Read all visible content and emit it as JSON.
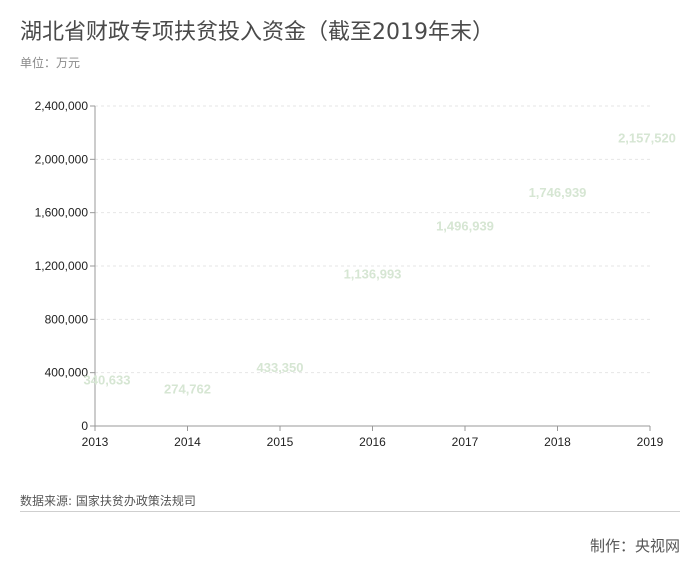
{
  "header": {
    "title": "湖北省财政专项扶贫投入资金（截至2019年末）",
    "unit": "单位：万元"
  },
  "footer": {
    "source": "数据来源: 国家扶贫办政策法规司",
    "credit": "制作：央视网"
  },
  "colors": {
    "data_label": "#d6e6d3",
    "axis": "#999999",
    "grid": "#e6e6e6"
  },
  "chart_data": {
    "type": "scatter",
    "title": "湖北省财政专项扶贫投入资金（截至2019年末）",
    "xlabel": "",
    "ylabel": "单位：万元",
    "x": [
      "2013",
      "2014",
      "2015",
      "2016",
      "2017",
      "2018",
      "2019"
    ],
    "values": [
      340633,
      274762,
      433350,
      1136993,
      1496939,
      1746939,
      2157520
    ],
    "data_labels": [
      "340,633",
      "274,762",
      "433,350",
      "1,136,993",
      "1,496,939",
      "1,746,939",
      "2,157,520"
    ],
    "ylim": [
      0,
      2400000
    ],
    "yticks": [
      0,
      400000,
      800000,
      1200000,
      1600000,
      2000000,
      2400000
    ],
    "ytick_labels": [
      "0",
      "400,000",
      "800,000",
      "1,200,000",
      "1,600,000",
      "2,000,000",
      "2,400,000"
    ],
    "grid": true,
    "legend": "none"
  }
}
